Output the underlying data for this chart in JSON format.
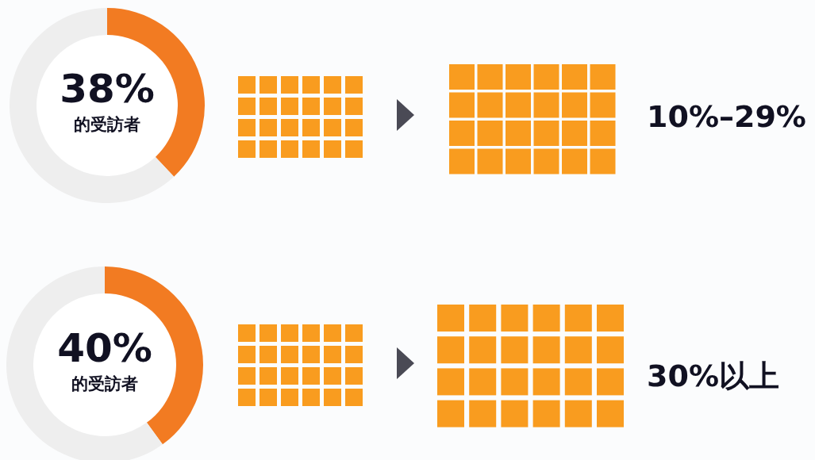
{
  "chart_data": [
    {
      "type": "donut",
      "categories": [
        null,
        null
      ],
      "values": [
        38,
        62
      ],
      "colors": [
        "#f27b22",
        "#eeeeee"
      ],
      "value_labels": [
        "38%",
        null
      ],
      "annotations": [
        "的受訪者",
        "10%–29%"
      ]
    },
    {
      "type": "donut",
      "categories": [
        null,
        null
      ],
      "values": [
        40,
        60
      ],
      "colors": [
        "#f27b22",
        "#eeeeee"
      ],
      "value_labels": [
        "40%",
        null
      ],
      "annotations": [
        "的受訪者",
        "30%以上"
      ]
    }
  ]
}
